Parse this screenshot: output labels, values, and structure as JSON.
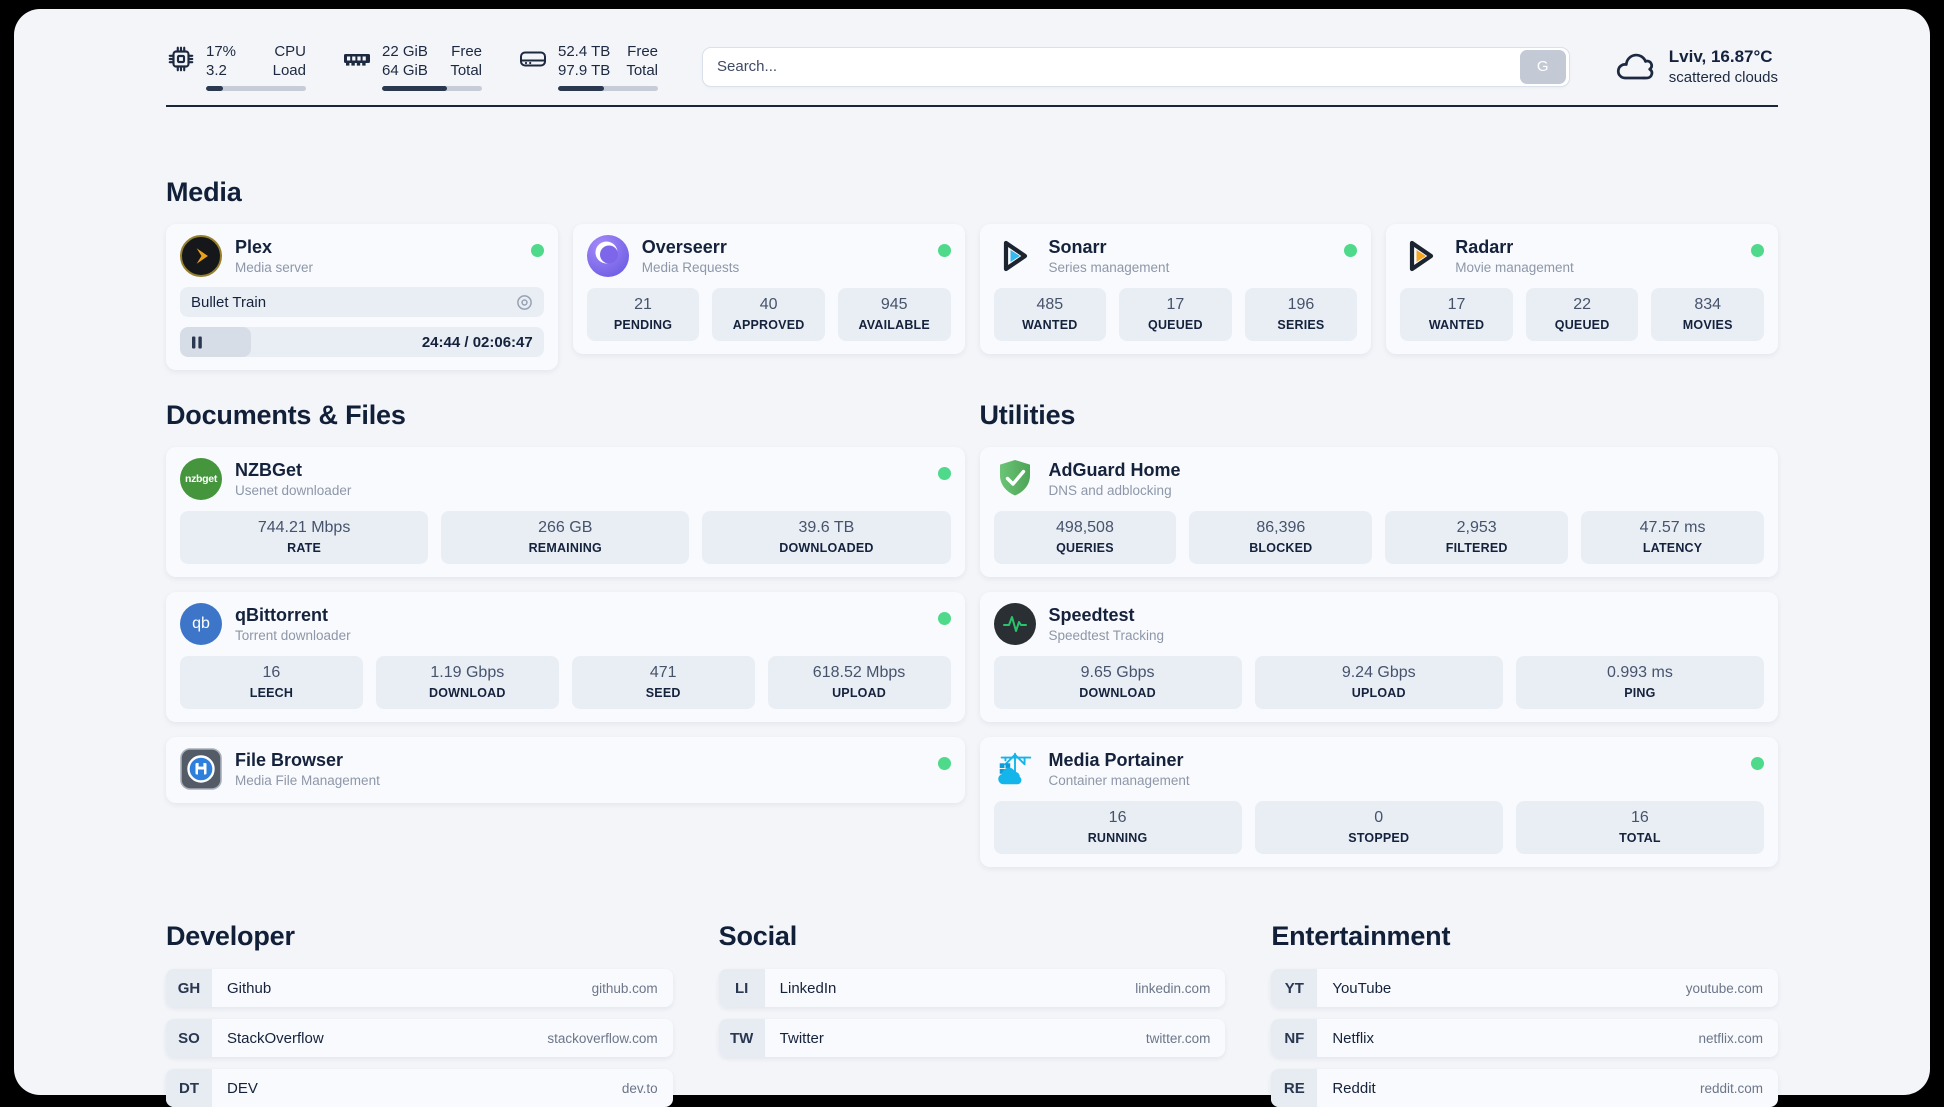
{
  "header": {
    "cpu": {
      "value_top": "17%",
      "value_bottom": "3.2",
      "label_top": "CPU",
      "label_bottom": "Load",
      "progress": 17
    },
    "memory": {
      "value_top": "22 GiB",
      "value_bottom": "64 GiB",
      "label_top": "Free",
      "label_bottom": "Total",
      "progress": 65
    },
    "disk": {
      "value_top": "52.4 TB",
      "value_bottom": "97.9 TB",
      "label_top": "Free",
      "label_bottom": "Total",
      "progress": 46
    },
    "search": {
      "placeholder": "Search...",
      "button_label": "G"
    },
    "weather": {
      "location": "Lviv, 16.87°C",
      "condition": "scattered clouds"
    }
  },
  "sections": {
    "media": {
      "title": "Media",
      "plex": {
        "name": "Plex",
        "description": "Media server",
        "status": "online",
        "now_playing": {
          "title": "Bullet Train",
          "time": "24:44 / 02:06:47",
          "progress": 19.5
        }
      },
      "overseerr": {
        "name": "Overseerr",
        "description": "Media Requests",
        "status": "online",
        "stats": [
          {
            "value": "21",
            "label": "PENDING"
          },
          {
            "value": "40",
            "label": "APPROVED"
          },
          {
            "value": "945",
            "label": "AVAILABLE"
          }
        ]
      },
      "sonarr": {
        "name": "Sonarr",
        "description": "Series management",
        "status": "online",
        "stats": [
          {
            "value": "485",
            "label": "WANTED"
          },
          {
            "value": "17",
            "label": "QUEUED"
          },
          {
            "value": "196",
            "label": "SERIES"
          }
        ]
      },
      "radarr": {
        "name": "Radarr",
        "description": "Movie management",
        "status": "online",
        "stats": [
          {
            "value": "17",
            "label": "WANTED"
          },
          {
            "value": "22",
            "label": "QUEUED"
          },
          {
            "value": "834",
            "label": "MOVIES"
          }
        ]
      }
    },
    "documents": {
      "title": "Documents & Files",
      "nzbget": {
        "name": "NZBGet",
        "description": "Usenet downloader",
        "status": "online",
        "stats": [
          {
            "value": "744.21 Mbps",
            "label": "RATE"
          },
          {
            "value": "266 GB",
            "label": "REMAINING"
          },
          {
            "value": "39.6 TB",
            "label": "DOWNLOADED"
          }
        ]
      },
      "qbittorrent": {
        "name": "qBittorrent",
        "description": "Torrent downloader",
        "status": "online",
        "stats": [
          {
            "value": "16",
            "label": "LEECH"
          },
          {
            "value": "1.19 Gbps",
            "label": "DOWNLOAD"
          },
          {
            "value": "471",
            "label": "SEED"
          },
          {
            "value": "618.52 Mbps",
            "label": "UPLOAD"
          }
        ]
      },
      "filebrowser": {
        "name": "File Browser",
        "description": "Media File Management",
        "status": "online"
      }
    },
    "utilities": {
      "title": "Utilities",
      "adguard": {
        "name": "AdGuard Home",
        "description": "DNS and adblocking",
        "stats": [
          {
            "value": "498,508",
            "label": "QUERIES"
          },
          {
            "value": "86,396",
            "label": "BLOCKED"
          },
          {
            "value": "2,953",
            "label": "FILTERED"
          },
          {
            "value": "47.57 ms",
            "label": "LATENCY"
          }
        ]
      },
      "speedtest": {
        "name": "Speedtest",
        "description": "Speedtest Tracking",
        "stats": [
          {
            "value": "9.65 Gbps",
            "label": "DOWNLOAD"
          },
          {
            "value": "9.24 Gbps",
            "label": "UPLOAD"
          },
          {
            "value": "0.993 ms",
            "label": "PING"
          }
        ]
      },
      "portainer": {
        "name": "Media Portainer",
        "description": "Container management",
        "status": "online",
        "stats": [
          {
            "value": "16",
            "label": "RUNNING"
          },
          {
            "value": "0",
            "label": "STOPPED"
          },
          {
            "value": "16",
            "label": "TOTAL"
          }
        ]
      }
    },
    "developer": {
      "title": "Developer",
      "links": [
        {
          "abbr": "GH",
          "name": "Github",
          "url": "github.com"
        },
        {
          "abbr": "SO",
          "name": "StackOverflow",
          "url": "stackoverflow.com"
        },
        {
          "abbr": "DT",
          "name": "DEV",
          "url": "dev.to"
        }
      ]
    },
    "social": {
      "title": "Social",
      "links": [
        {
          "abbr": "LI",
          "name": "LinkedIn",
          "url": "linkedin.com"
        },
        {
          "abbr": "TW",
          "name": "Twitter",
          "url": "twitter.com"
        }
      ]
    },
    "entertainment": {
      "title": "Entertainment",
      "links": [
        {
          "abbr": "YT",
          "name": "YouTube",
          "url": "youtube.com"
        },
        {
          "abbr": "NF",
          "name": "Netflix",
          "url": "netflix.com"
        },
        {
          "abbr": "RE",
          "name": "Reddit",
          "url": "reddit.com"
        }
      ]
    }
  },
  "icons": {
    "cpu": "chip-icon",
    "memory": "ram-icon",
    "disk": "hard-drive-icon",
    "weather": "cloud-icon",
    "search_engine": "google-g-button",
    "status": "online-dot"
  },
  "colors": {
    "status_online": "#4ed98b",
    "plex_brand": "#e8a11b",
    "sonarr_brand": "#36b8f1",
    "radarr_brand": "#f7a823",
    "nzbget_brand": "#44953c",
    "qbittorrent_brand": "#3d76c9",
    "adguard_brand": "#5fb869",
    "speedtest_pulse": "#27c46d",
    "portainer_brand": "#13b5ea",
    "progress_fill": "#2b3950",
    "divider": "#1b2638"
  }
}
